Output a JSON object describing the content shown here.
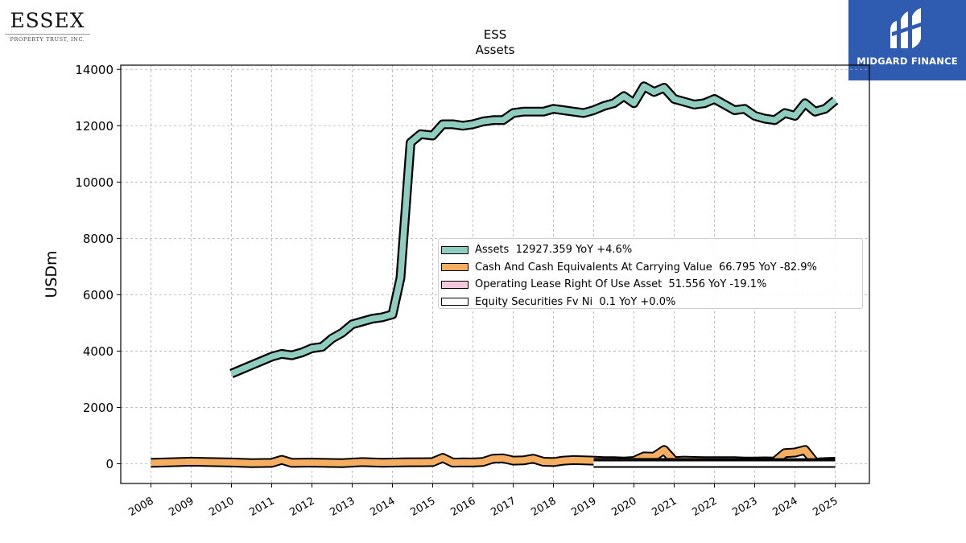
{
  "branding": {
    "left_logo_name": "ESSEX",
    "left_logo_sub": "PROPERTY TRUST, INC.",
    "right_logo_caption": "MIDGARD FINANCE",
    "right_logo_bg": "#2f5bb0"
  },
  "chart_data": {
    "type": "area",
    "title": "ESS",
    "subtitle": "Assets",
    "xlabel": "",
    "ylabel": "USDm",
    "xlim": [
      2007.25,
      2025.85
    ],
    "ylim": [
      -700,
      14150
    ],
    "yticks": [
      0,
      2000,
      4000,
      6000,
      8000,
      10000,
      12000,
      14000
    ],
    "xticks": [
      "2008",
      "2009",
      "2010",
      "2011",
      "2012",
      "2013",
      "2014",
      "2015",
      "2016",
      "2017",
      "2018",
      "2019",
      "2020",
      "2021",
      "2022",
      "2023",
      "2024",
      "2025"
    ],
    "grid": true,
    "legend_position": "center-right",
    "series": [
      {
        "name": "Assets",
        "legend": "Assets  12927.359 YoY +4.6%",
        "color": "#8ecdc0",
        "x": [
          2010.0,
          2010.25,
          2010.5,
          2010.75,
          2011.0,
          2011.25,
          2011.5,
          2011.75,
          2012.0,
          2012.25,
          2012.5,
          2012.75,
          2013.0,
          2013.25,
          2013.5,
          2013.75,
          2014.0,
          2014.2,
          2014.45,
          2014.7,
          2015.0,
          2015.25,
          2015.5,
          2015.75,
          2016.0,
          2016.25,
          2016.5,
          2016.75,
          2017.0,
          2017.25,
          2017.5,
          2017.75,
          2018.0,
          2018.25,
          2018.5,
          2018.75,
          2019.0,
          2019.25,
          2019.5,
          2019.75,
          2020.0,
          2020.25,
          2020.5,
          2020.75,
          2021.0,
          2021.25,
          2021.5,
          2021.75,
          2022.0,
          2022.25,
          2022.5,
          2022.75,
          2023.0,
          2023.25,
          2023.5,
          2023.75,
          2024.0,
          2024.25,
          2024.5,
          2024.75,
          2025.0
        ],
        "values": [
          3200,
          3350,
          3500,
          3650,
          3800,
          3900,
          3850,
          3950,
          4100,
          4150,
          4450,
          4650,
          4950,
          5050,
          5150,
          5200,
          5300,
          6600,
          11400,
          11700,
          11650,
          12050,
          12050,
          12000,
          12050,
          12150,
          12200,
          12200,
          12450,
          12500,
          12500,
          12500,
          12600,
          12550,
          12500,
          12450,
          12550,
          12700,
          12800,
          13050,
          12800,
          13400,
          13200,
          13350,
          12950,
          12850,
          12750,
          12800,
          12950,
          12750,
          12550,
          12600,
          12350,
          12250,
          12200,
          12450,
          12350,
          12800,
          12500,
          12600,
          12900
        ]
      },
      {
        "name": "Cash And Cash Equivalents At Carrying Value",
        "legend": "Cash And Cash Equivalents At Carrying Value  66.795 YoY -82.9%",
        "color": "#f5ad62",
        "x": [
          2008.0,
          2009.0,
          2010.0,
          2010.5,
          2011.0,
          2011.25,
          2011.5,
          2012.0,
          2012.75,
          2013.25,
          2013.75,
          2014.25,
          2014.75,
          2015.0,
          2015.25,
          2015.5,
          2015.75,
          2016.0,
          2016.25,
          2016.5,
          2016.75,
          2017.0,
          2017.25,
          2017.5,
          2017.75,
          2018.0,
          2018.25,
          2018.5,
          2018.75,
          2019.0,
          2019.25,
          2019.5,
          2019.75,
          2020.0,
          2020.25,
          2020.5,
          2020.75,
          2021.0,
          2021.25,
          2021.5,
          2021.75,
          2022.0,
          2022.25,
          2022.5,
          2022.75,
          2023.0,
          2023.25,
          2023.5,
          2023.75,
          2024.0,
          2024.25,
          2024.5,
          2024.75,
          2025.0
        ],
        "values": [
          30,
          75,
          45,
          20,
          30,
          140,
          30,
          40,
          20,
          60,
          35,
          50,
          55,
          60,
          210,
          40,
          50,
          45,
          65,
          180,
          190,
          110,
          120,
          180,
          70,
          60,
          110,
          130,
          120,
          110,
          90,
          90,
          80,
          100,
          260,
          250,
          490,
          90,
          110,
          100,
          90,
          95,
          90,
          95,
          80,
          80,
          85,
          80,
          380,
          400,
          490,
          40,
          60,
          70
        ]
      },
      {
        "name": "Operating Lease Right Of Use Asset",
        "legend": "Operating Lease Right Of Use Asset  51.556 YoY -19.1%",
        "color": "#f6c8dd",
        "x": [
          2019.0,
          2025.0
        ],
        "values": [
          60,
          50
        ]
      },
      {
        "name": "Equity Securities Fv Ni",
        "legend": "Equity Securities Fv Ni  0.1 YoY +0.0%",
        "color": "#ffffff",
        "x": [
          2019.0,
          2025.0
        ],
        "values": [
          0.1,
          0.1
        ]
      }
    ]
  }
}
